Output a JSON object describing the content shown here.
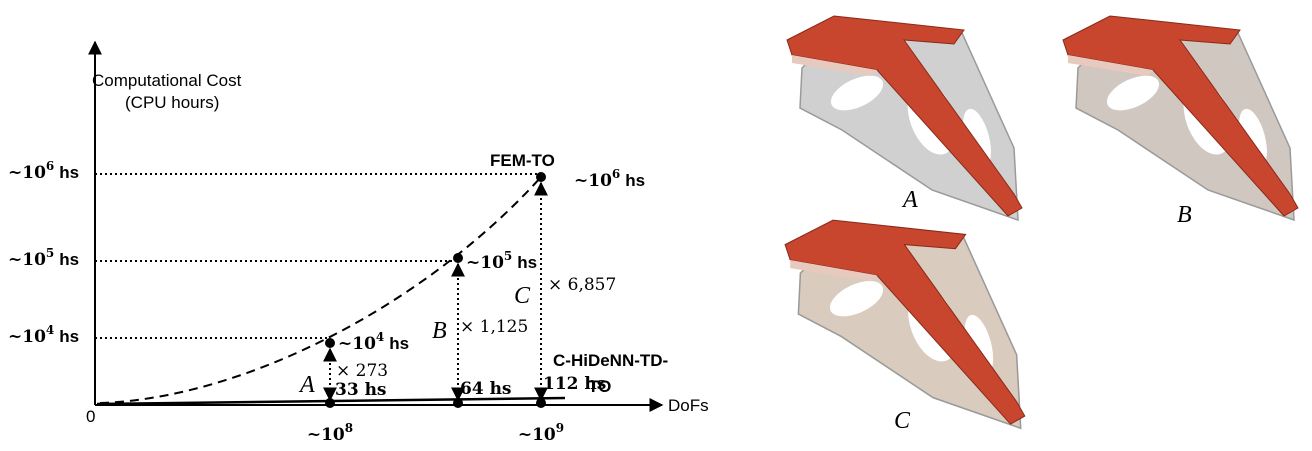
{
  "plot": {
    "y_axis_title": "Computational Cost",
    "y_axis_subtitle": "(CPU hours)",
    "x_axis_title": "DoFs",
    "origin": "0",
    "y_levels": [
      {
        "prefix": "~10",
        "exponent": "6",
        "unit": "hs"
      },
      {
        "prefix": "~10",
        "exponent": "5",
        "unit": "hs"
      },
      {
        "prefix": "~10",
        "exponent": "4",
        "unit": "hs"
      }
    ],
    "x_levels": [
      {
        "prefix": "~10",
        "exponent": "8"
      },
      {
        "prefix": "~10",
        "exponent": "9"
      }
    ],
    "cases": [
      {
        "name": "A",
        "fem_cost": {
          "prefix": "~10",
          "exponent": "4",
          "unit": "hs"
        },
        "hidenn_cost": "33 hs",
        "speedup": "× 273"
      },
      {
        "name": "B",
        "fem_cost": {
          "prefix": "~10",
          "exponent": "5",
          "unit": "hs"
        },
        "hidenn_cost": "64 hs",
        "speedup": "× 1,125"
      },
      {
        "name": "C",
        "fem_cost": {
          "prefix": "~10",
          "exponent": "6",
          "unit": "hs"
        },
        "hidenn_cost": "112 hs",
        "speedup": "× 6,857"
      }
    ],
    "fem_label": "FEM-TO",
    "hidenn_label": [
      "C-HiDeNN-TD-",
      "TO"
    ]
  },
  "renders": [
    {
      "label": "A"
    },
    {
      "label": "B"
    },
    {
      "label": "C"
    }
  ]
}
